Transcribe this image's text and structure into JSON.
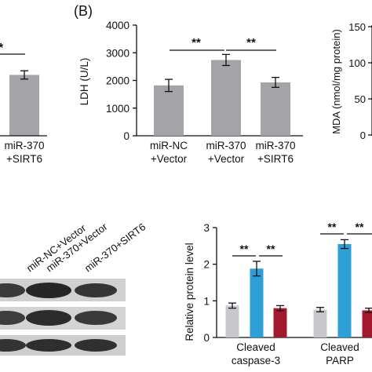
{
  "left_fragment": {
    "sig": "*",
    "xlabel": [
      "miR-370",
      "+SIRT6"
    ],
    "value": 2200,
    "err": 150
  },
  "panel_b": {
    "panel_label": "(B)",
    "ylabel_ldh": "LDH (U/L)",
    "ylabel_mda": "MDA (nmol/mg protein)",
    "mda_ticks": [
      "150",
      "100",
      "50",
      "0"
    ],
    "sig": [
      "**",
      "**"
    ]
  },
  "blot": {
    "lanes": [
      "miR-NC+Vector",
      "miR-370+Vector",
      "miR-370+SIRT6"
    ]
  },
  "panel_d": {
    "ylabel": "Relative protein level",
    "sig": [
      "**",
      "**",
      "**",
      "**"
    ],
    "groups": [
      [
        "Cleaved",
        "caspase-3"
      ],
      [
        "Cleaved",
        "PARP"
      ]
    ]
  },
  "colors": {
    "bar_gray": "#a3a3a8",
    "light_gray": "#c8c8cc",
    "blue": "#2e9fd6",
    "red": "#a3192d"
  },
  "chart_data": [
    {
      "type": "bar",
      "categories": [
        "miR-NC+Vector",
        "miR-370+Vector",
        "miR-370+SIRT6"
      ],
      "category_labels": [
        [
          "miR-NC",
          "+Vector"
        ],
        [
          "miR-370",
          "+Vector"
        ],
        [
          "miR-370",
          "+SIRT6"
        ]
      ],
      "values": [
        1820,
        2740,
        1930
      ],
      "errors": [
        220,
        200,
        180
      ],
      "ylabel": "LDH (U/L)",
      "ylim": [
        0,
        4000
      ],
      "yticks": [
        0,
        1000,
        2000,
        3000,
        4000
      ]
    },
    {
      "type": "bar",
      "categories": [
        "Cleaved caspase-3",
        "Cleaved PARP"
      ],
      "series": [
        {
          "values": [
            0.87,
            0.76
          ],
          "errors": [
            0.07,
            0.06
          ]
        },
        {
          "values": [
            1.88,
            2.55
          ],
          "errors": [
            0.2,
            0.12
          ]
        },
        {
          "values": [
            0.8,
            0.74
          ],
          "errors": [
            0.07,
            0.06
          ]
        }
      ],
      "ylabel": "Relative protein level",
      "ylim": [
        0,
        3
      ],
      "yticks": [
        0,
        1,
        2,
        3
      ]
    }
  ]
}
